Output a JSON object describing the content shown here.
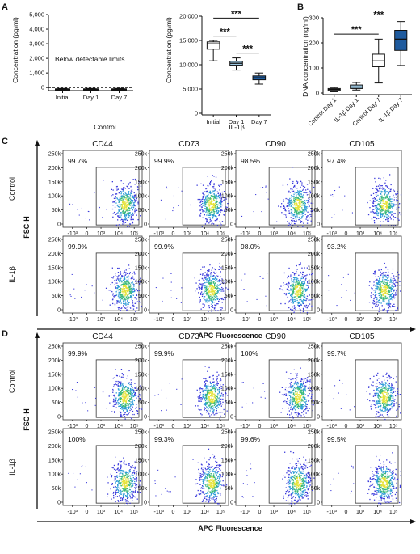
{
  "panel_letters": [
    "A",
    "B",
    "C",
    "D"
  ],
  "chart_data": [
    {
      "type": "box",
      "panel": "A",
      "ylabel": "Concentration (pg/ml)",
      "group_label": "Control",
      "categories": [
        "Initial",
        "Day 1",
        "Day 7"
      ],
      "ylim": [
        -100,
        5000
      ],
      "yticks": [
        "5,000",
        "4,000",
        "3,000",
        "2,000",
        "1,000",
        "0"
      ],
      "annotation": "Below detectable limits",
      "values_note": "",
      "boxes": [
        {
          "min": -150,
          "q1": -110,
          "median": -100,
          "q3": -90,
          "max": -60
        },
        {
          "min": -150,
          "q1": -110,
          "median": -100,
          "q3": -90,
          "max": -60
        },
        {
          "min": -150,
          "q1": -110,
          "median": -100,
          "q3": -90,
          "max": -60
        }
      ],
      "color": "#1a1a1a"
    },
    {
      "type": "box",
      "panel": "A",
      "ylabel": "Concentration (pg/ml)",
      "group_label": "IL-1β",
      "categories": [
        "Initial",
        "Day 1",
        "Day 7"
      ],
      "ylim": [
        0,
        20000
      ],
      "yticks": [
        "20,000",
        "15,000",
        "10,000",
        "5,000",
        "0"
      ],
      "boxes": [
        {
          "min": 10800,
          "q1": 13200,
          "median": 14300,
          "q3": 14700,
          "max": 15000,
          "fill": "#ffffff"
        },
        {
          "min": 8900,
          "q1": 9900,
          "median": 10300,
          "q3": 10700,
          "max": 11400,
          "fill": "#9ec9e2"
        },
        {
          "min": 6000,
          "q1": 6900,
          "median": 7300,
          "q3": 7700,
          "max": 8300,
          "fill": "#1f5b9e"
        }
      ],
      "significance": [
        {
          "from": 0,
          "to": 2,
          "label": "***",
          "y": 19600
        },
        {
          "from": 0,
          "to": 1,
          "label": "***",
          "y": 15900
        },
        {
          "from": 1,
          "to": 2,
          "label": "***",
          "y": 12400
        }
      ]
    },
    {
      "type": "box",
      "panel": "B",
      "ylabel": "DNA concentration (ng/ml)",
      "categories": [
        "Control Day 1",
        "IL-1β Day 1",
        "Control Day 7",
        "IL-1β Day 7"
      ],
      "ylim": [
        0,
        300
      ],
      "yticks": [
        "300",
        "200",
        "100",
        "0"
      ],
      "boxes": [
        {
          "min": 5,
          "q1": 10,
          "median": 14,
          "q3": 18,
          "max": 22,
          "fill": "#ffffff"
        },
        {
          "min": 12,
          "q1": 18,
          "median": 24,
          "q3": 32,
          "max": 42,
          "fill": "#9ec9e2"
        },
        {
          "min": 40,
          "q1": 105,
          "median": 128,
          "q3": 155,
          "max": 215,
          "fill": "#ffffff"
        },
        {
          "min": 110,
          "q1": 170,
          "median": 215,
          "q3": 250,
          "max": 285,
          "fill": "#1f5b9e"
        }
      ],
      "significance": [
        {
          "from": 0,
          "to": 2,
          "label": "***",
          "y": 235
        },
        {
          "from": 1,
          "to": 3,
          "label": "***",
          "y": 295
        }
      ]
    }
  ],
  "flow_panels": [
    {
      "letter": "C",
      "markers": [
        "CD44",
        "CD73",
        "CD90",
        "CD105"
      ],
      "rows": [
        {
          "label": "Control",
          "percents": [
            "99.7%",
            "99.9%",
            "98.5%",
            "97.4%"
          ]
        },
        {
          "label": "IL-1β",
          "percents": [
            "99.9%",
            "99.9%",
            "98.0%",
            "93.2%"
          ]
        }
      ],
      "yaxis_label": "FSC-H",
      "xaxis_label": "APC Fluorescence",
      "yticks": [
        "250k",
        "200k",
        "150k",
        "100k",
        "50k",
        "0"
      ],
      "xticks": [
        "-10³",
        "0",
        "10³",
        "10⁴",
        "10⁵"
      ]
    },
    {
      "letter": "D",
      "markers": [
        "CD44",
        "CD73",
        "CD90",
        "CD105"
      ],
      "rows": [
        {
          "label": "Control",
          "percents": [
            "99.9%",
            "99.9%",
            "100%",
            "99.7%"
          ]
        },
        {
          "label": "IL-1β",
          "percents": [
            "100%",
            "99.3%",
            "99.6%",
            "99.5%"
          ]
        }
      ],
      "yaxis_label": "FSC-H",
      "xaxis_label": "APC Fluorescence",
      "yticks": [
        "250k",
        "200k",
        "150k",
        "100k",
        "50k",
        "0"
      ],
      "xticks": [
        "-10³",
        "0",
        "10³",
        "10⁴",
        "10⁵"
      ]
    }
  ]
}
